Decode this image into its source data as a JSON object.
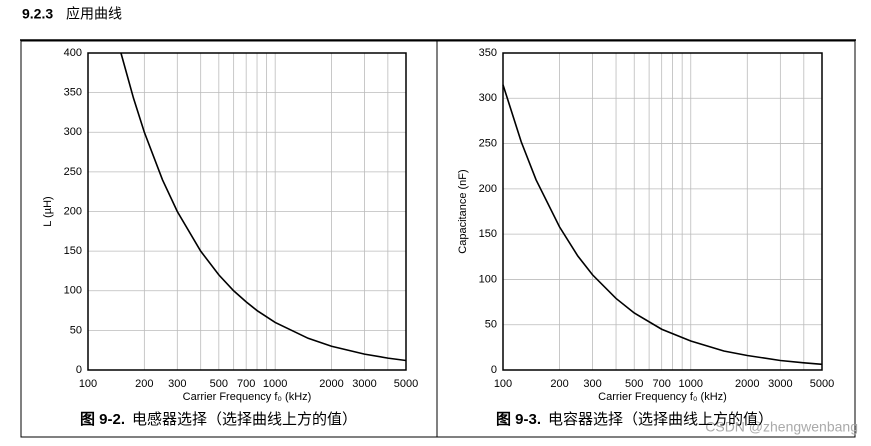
{
  "header": {
    "number": "9.2.3",
    "title": "应用曲线"
  },
  "watermark": "CSDN @zhengwenbang",
  "chart_data": [
    {
      "type": "line",
      "caption_number": "图 9-2.",
      "caption": "电感器选择（选择曲线上方的值）",
      "x_label": "Carrier Frequency f₀ (kHz)",
      "y_label": "L (µH)",
      "xscale": "log",
      "grid": true,
      "color": "#000000",
      "xlim": [
        100,
        5000
      ],
      "xticks": [
        100,
        200,
        300,
        500,
        700,
        1000,
        2000,
        3000,
        5000
      ],
      "ylim": [
        0,
        400
      ],
      "yticks": [
        0,
        50,
        100,
        150,
        200,
        250,
        300,
        350,
        400
      ],
      "x": [
        150,
        175,
        200,
        250,
        300,
        400,
        500,
        600,
        700,
        800,
        1000,
        1500,
        2000,
        3000,
        4000,
        5000
      ],
      "values": [
        400,
        343,
        300,
        240,
        200,
        150,
        120,
        100,
        86,
        75,
        60,
        40,
        30,
        20,
        15,
        12
      ]
    },
    {
      "type": "line",
      "caption_number": "图 9-3.",
      "caption": "电容器选择（选择曲线上方的值）",
      "x_label": "Carrier Frequency f₀ (kHz)",
      "y_label": "Capacitance (nF)",
      "xscale": "log",
      "grid": true,
      "color": "#000000",
      "xlim": [
        100,
        5000
      ],
      "xticks": [
        100,
        200,
        300,
        500,
        700,
        1000,
        2000,
        3000,
        5000
      ],
      "ylim": [
        0,
        350
      ],
      "yticks": [
        0,
        50,
        100,
        150,
        200,
        250,
        300,
        350
      ],
      "x": [
        100,
        125,
        150,
        200,
        250,
        300,
        400,
        500,
        700,
        1000,
        1500,
        2000,
        3000,
        4000,
        5000
      ],
      "values": [
        315,
        252,
        210,
        158,
        126,
        105,
        79,
        63,
        45,
        32,
        21,
        16,
        10.5,
        7.9,
        6.3
      ]
    }
  ]
}
